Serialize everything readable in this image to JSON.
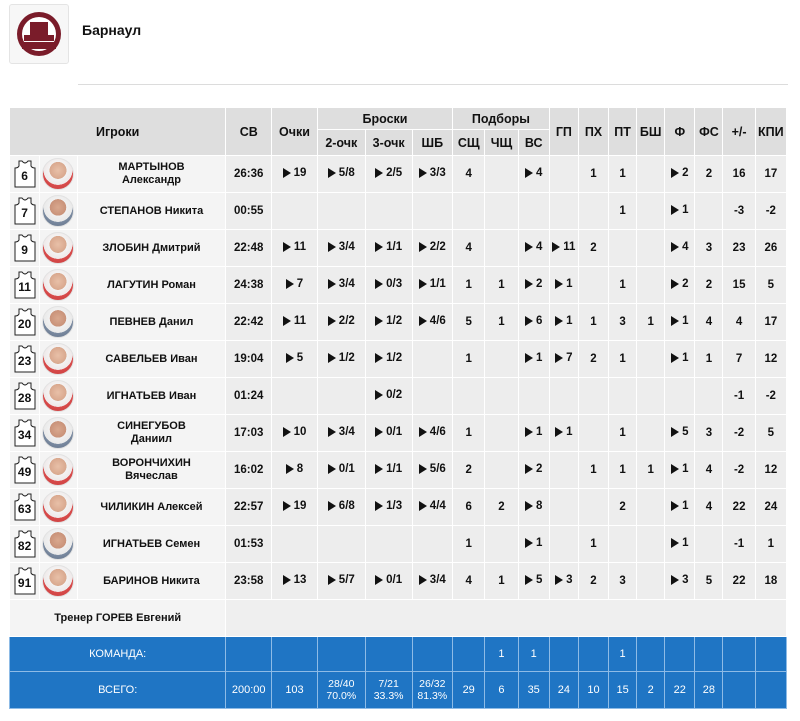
{
  "team": {
    "name": "Барнаул",
    "logo_icon": "club-logo"
  },
  "columns": {
    "players": "Игроки",
    "minutes": "СВ",
    "points": "Очки",
    "shots": "Броски",
    "two": "2-очк",
    "three": "3-очк",
    "ft": "ШБ",
    "rebounds": "Подборы",
    "def": "СЩ",
    "off": "ЧЩ",
    "reb": "ВС",
    "ast": "ГП",
    "to": "ПХ",
    "stl": "ПТ",
    "blk": "БШ",
    "fouls": "Ф",
    "fd": "ФС",
    "pm": "+/-",
    "eff": "КПИ"
  },
  "players": [
    {
      "num": "6",
      "name1": "МАРТЫНОВ",
      "name2": "Александр",
      "min": "26:36",
      "pts": "19",
      "two": "5/8",
      "three": "2/5",
      "ft": "3/3",
      "def": "4",
      "off": "",
      "reb": "4",
      "ast": "",
      "to": "1",
      "stl": "1",
      "blk": "",
      "f": "2",
      "fd": "2",
      "pm": "16",
      "eff": "17"
    },
    {
      "num": "7",
      "name1": "СТЕПАНОВ Никита",
      "name2": "",
      "min": "00:55",
      "pts": "",
      "two": "",
      "three": "",
      "ft": "",
      "def": "",
      "off": "",
      "reb": "",
      "ast": "",
      "to": "",
      "stl": "1",
      "blk": "",
      "f": "1",
      "fd": "",
      "pm": "-3",
      "eff": "-2"
    },
    {
      "num": "9",
      "name1": "ЗЛОБИН Дмитрий",
      "name2": "",
      "min": "22:48",
      "pts": "11",
      "two": "3/4",
      "three": "1/1",
      "ft": "2/2",
      "def": "4",
      "off": "",
      "reb": "4",
      "ast": "11",
      "to": "2",
      "stl": "",
      "blk": "",
      "f": "4",
      "fd": "3",
      "pm": "23",
      "eff": "26"
    },
    {
      "num": "11",
      "name1": "ЛАГУТИН Роман",
      "name2": "",
      "min": "24:38",
      "pts": "7",
      "two": "3/4",
      "three": "0/3",
      "ft": "1/1",
      "def": "1",
      "off": "1",
      "reb": "2",
      "ast": "1",
      "to": "",
      "stl": "1",
      "blk": "",
      "f": "2",
      "fd": "2",
      "pm": "15",
      "eff": "5"
    },
    {
      "num": "20",
      "name1": "ПЕВНЕВ Данил",
      "name2": "",
      "min": "22:42",
      "pts": "11",
      "two": "2/2",
      "three": "1/2",
      "ft": "4/6",
      "def": "5",
      "off": "1",
      "reb": "6",
      "ast": "1",
      "to": "1",
      "stl": "3",
      "blk": "1",
      "f": "1",
      "fd": "4",
      "pm": "4",
      "eff": "17"
    },
    {
      "num": "23",
      "name1": "САВЕЛЬЕВ Иван",
      "name2": "",
      "min": "19:04",
      "pts": "5",
      "two": "1/2",
      "three": "1/2",
      "ft": "",
      "def": "1",
      "off": "",
      "reb": "1",
      "ast": "7",
      "to": "2",
      "stl": "1",
      "blk": "",
      "f": "1",
      "fd": "1",
      "pm": "7",
      "eff": "12"
    },
    {
      "num": "28",
      "name1": "ИГНАТЬЕВ Иван",
      "name2": "",
      "min": "01:24",
      "pts": "",
      "two": "",
      "three": "0/2",
      "ft": "",
      "def": "",
      "off": "",
      "reb": "",
      "ast": "",
      "to": "",
      "stl": "",
      "blk": "",
      "f": "",
      "fd": "",
      "pm": "-1",
      "eff": "-2"
    },
    {
      "num": "34",
      "name1": "СИНЕГУБОВ",
      "name2": "Даниил",
      "min": "17:03",
      "pts": "10",
      "two": "3/4",
      "three": "0/1",
      "ft": "4/6",
      "def": "1",
      "off": "",
      "reb": "1",
      "ast": "1",
      "to": "",
      "stl": "1",
      "blk": "",
      "f": "5",
      "fd": "3",
      "pm": "-2",
      "eff": "5"
    },
    {
      "num": "49",
      "name1": "ВОРОНЧИХИН",
      "name2": "Вячеслав",
      "min": "16:02",
      "pts": "8",
      "two": "0/1",
      "three": "1/1",
      "ft": "5/6",
      "def": "2",
      "off": "",
      "reb": "2",
      "ast": "",
      "to": "1",
      "stl": "1",
      "blk": "1",
      "f": "1",
      "fd": "4",
      "pm": "-2",
      "eff": "12"
    },
    {
      "num": "63",
      "name1": "ЧИЛИКИН Алексей",
      "name2": "",
      "min": "22:57",
      "pts": "19",
      "two": "6/8",
      "three": "1/3",
      "ft": "4/4",
      "def": "6",
      "off": "2",
      "reb": "8",
      "ast": "",
      "to": "",
      "stl": "2",
      "blk": "",
      "f": "1",
      "fd": "4",
      "pm": "22",
      "eff": "24"
    },
    {
      "num": "82",
      "name1": "ИГНАТЬЕВ Семен",
      "name2": "",
      "min": "01:53",
      "pts": "",
      "two": "",
      "three": "",
      "ft": "",
      "def": "1",
      "off": "",
      "reb": "1",
      "ast": "",
      "to": "1",
      "stl": "",
      "blk": "",
      "f": "1",
      "fd": "",
      "pm": "-1",
      "eff": "1"
    },
    {
      "num": "91",
      "name1": "БАРИНОВ Никита",
      "name2": "",
      "min": "23:58",
      "pts": "13",
      "two": "5/7",
      "three": "0/1",
      "ft": "3/4",
      "def": "4",
      "off": "1",
      "reb": "5",
      "ast": "3",
      "to": "2",
      "stl": "3",
      "blk": "",
      "f": "3",
      "fd": "5",
      "pm": "22",
      "eff": "18"
    }
  ],
  "coach": "Тренер ГОРЕВ Евгений",
  "team_row": {
    "label": "КОМАНДА:",
    "off": "1",
    "reb": "1",
    "stl": "1"
  },
  "total_row": {
    "label": "ВСЕГО:",
    "min": "200:00",
    "pts": "103",
    "two": "28/40",
    "two_pct": "70.0%",
    "three": "7/21",
    "three_pct": "33.3%",
    "ft": "26/32",
    "ft_pct": "81.3%",
    "def": "29",
    "off": "6",
    "reb": "35",
    "ast": "24",
    "to": "10",
    "stl": "15",
    "blk": "2",
    "f": "22",
    "fd": "28"
  }
}
